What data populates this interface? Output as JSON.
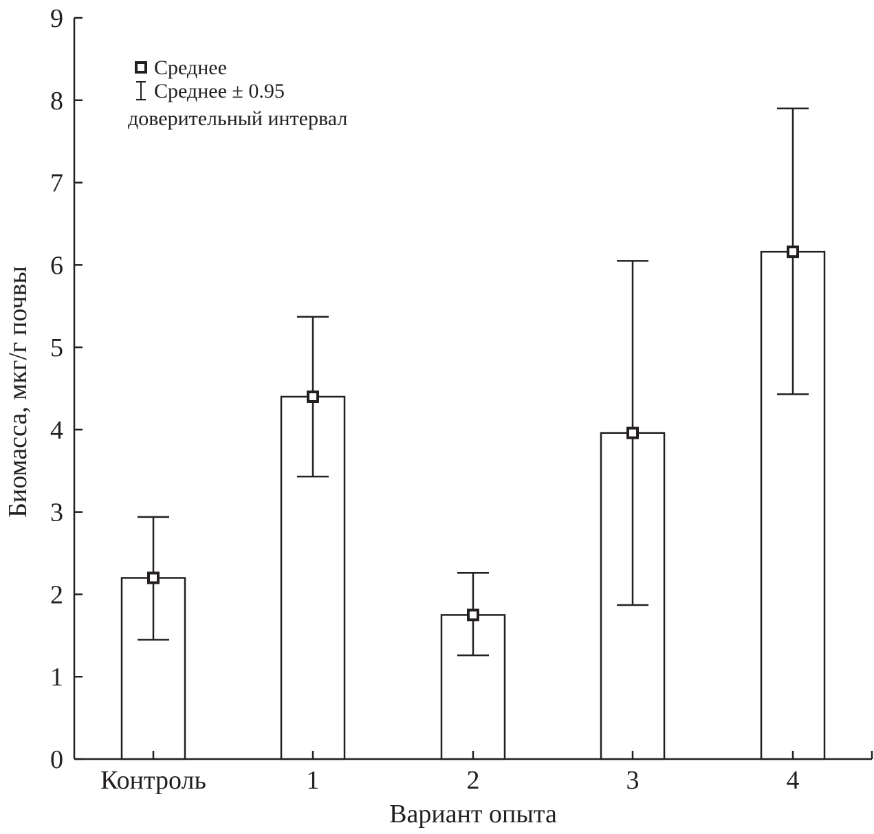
{
  "chart_data": {
    "type": "bar",
    "categories": [
      "Контроль",
      "1",
      "2",
      "3",
      "4"
    ],
    "values": [
      2.2,
      4.4,
      1.75,
      3.96,
      6.16
    ],
    "ci_lower": [
      1.45,
      3.43,
      1.26,
      1.87,
      4.43
    ],
    "ci_upper": [
      2.94,
      5.37,
      2.26,
      6.05,
      7.9
    ],
    "xlabel": "Вариант опыта",
    "ylabel": "Биомасса, мкг/г почвы",
    "ylim": [
      0,
      9
    ],
    "yticks": [
      "0",
      "1",
      "2",
      "3",
      "4",
      "5",
      "6",
      "7",
      "8",
      "9"
    ],
    "legend": {
      "placement": "top-left",
      "mean_label": "Среднее",
      "ci_label": "Среднее ± 0.95",
      "ci_label_2": "доверительный интервал"
    },
    "grid": false
  },
  "colors": {
    "ink": "#231f20",
    "bar_fill": "#ffffff"
  }
}
